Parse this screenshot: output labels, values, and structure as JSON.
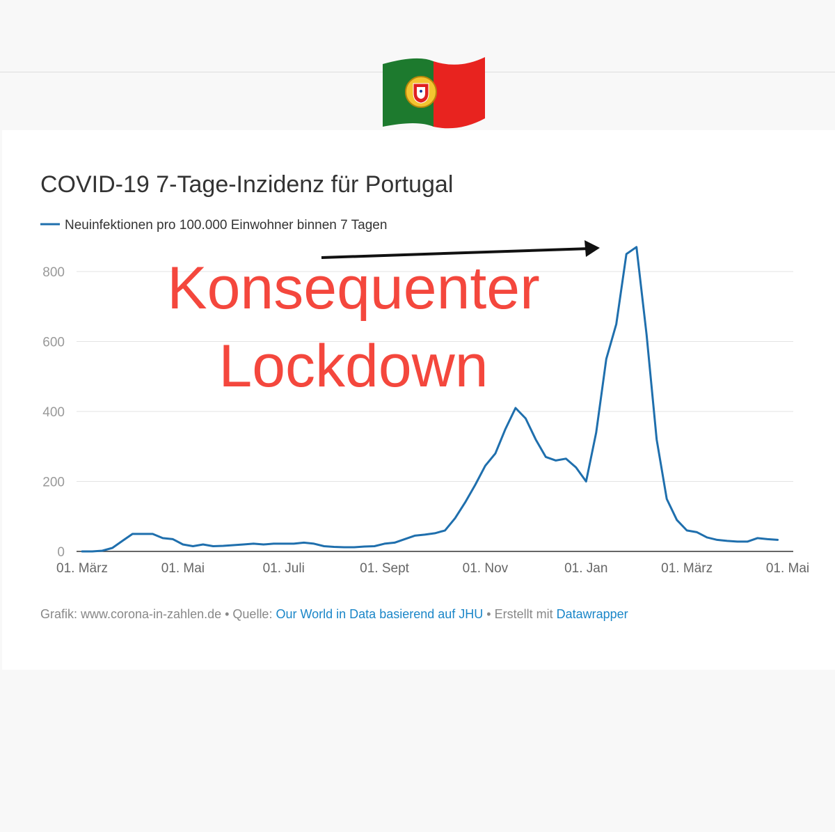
{
  "chart_data": {
    "type": "line",
    "title": "COVID-19 7-Tage-Inzidenz für Portugal",
    "annotation": [
      "Konsequenter",
      "Lockdown"
    ],
    "categories": [
      "01. März",
      null,
      null,
      null,
      null,
      null,
      null,
      null,
      null,
      null,
      "01. Mai",
      null,
      null,
      null,
      null,
      null,
      null,
      null,
      null,
      null,
      "01. Juli",
      null,
      null,
      null,
      null,
      null,
      null,
      null,
      null,
      null,
      "01. Sept",
      null,
      null,
      null,
      null,
      null,
      null,
      null,
      null,
      null,
      "01. Nov",
      null,
      null,
      null,
      null,
      null,
      null,
      null,
      null,
      null,
      "01. Jan",
      null,
      null,
      null,
      null,
      null,
      null,
      null,
      null,
      null,
      "01. März",
      null,
      null,
      null,
      null,
      null,
      null,
      null,
      null,
      null,
      "01. Mai"
    ],
    "series": [
      {
        "name": "Neuinfektionen pro 100.000 Einwohner binnen 7 Tagen",
        "color": "#1f6fad",
        "values": [
          0,
          0,
          2,
          10,
          30,
          50,
          50,
          50,
          38,
          35,
          20,
          15,
          20,
          15,
          16,
          18,
          20,
          22,
          20,
          22,
          22,
          22,
          25,
          22,
          15,
          13,
          12,
          12,
          14,
          15,
          22,
          25,
          35,
          45,
          48,
          52,
          60,
          95,
          140,
          190,
          245,
          280,
          350,
          410,
          380,
          320,
          270,
          260,
          265,
          240,
          200,
          340,
          550,
          650,
          850,
          870,
          620,
          320,
          150,
          90,
          60,
          55,
          40,
          33,
          30,
          28,
          28,
          38,
          35,
          33,
          null
        ]
      }
    ],
    "ylim": [
      0,
      900
    ],
    "yticks": [
      0,
      200,
      400,
      600,
      800
    ],
    "grid": true,
    "footer": {
      "credit": "Grafik: www.corona-in-zahlen.de • Quelle:",
      "source_link": "Our World in Data basierend auf JHU",
      "separator": "• Erstellt mit",
      "tool_link": "Datawrapper"
    }
  }
}
